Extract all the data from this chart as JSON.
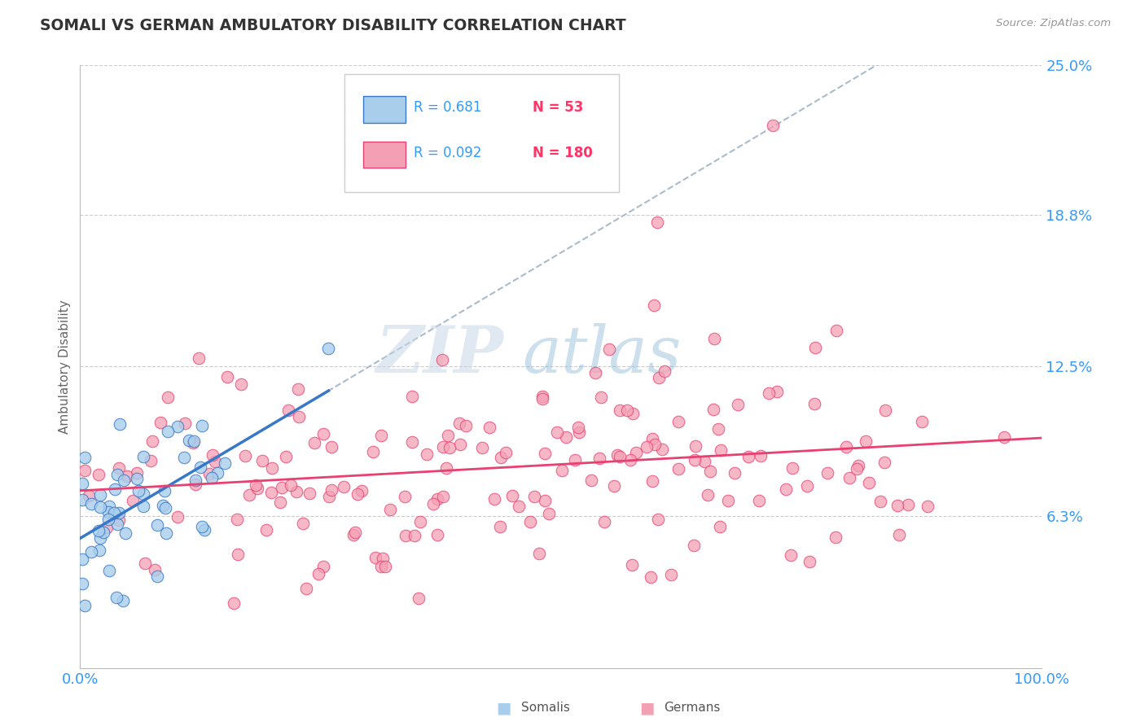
{
  "title": "SOMALI VS GERMAN AMBULATORY DISABILITY CORRELATION CHART",
  "source": "Source: ZipAtlas.com",
  "ylabel": "Ambulatory Disability",
  "x_min": 0.0,
  "x_max": 1.0,
  "y_min": 0.0,
  "y_max": 0.25,
  "y_ticks": [
    0.063,
    0.125,
    0.188,
    0.25
  ],
  "y_tick_labels": [
    "6.3%",
    "12.5%",
    "18.8%",
    "25.0%"
  ],
  "somali_R": 0.681,
  "somali_N": 53,
  "german_R": 0.092,
  "german_N": 180,
  "somali_color": "#A8CEEC",
  "german_color": "#F4A0B4",
  "somali_line_color": "#3878C8",
  "german_line_color": "#E84070",
  "dashed_line_color": "#AABBCC",
  "background_color": "#FFFFFF",
  "grid_color": "#CCCCCC",
  "watermark_zip": "ZIP",
  "watermark_atlas": "atlas",
  "title_color": "#333333",
  "legend_R_color": "#3399FF",
  "legend_N_color": "#FF3366",
  "tick_color": "#3399FF"
}
